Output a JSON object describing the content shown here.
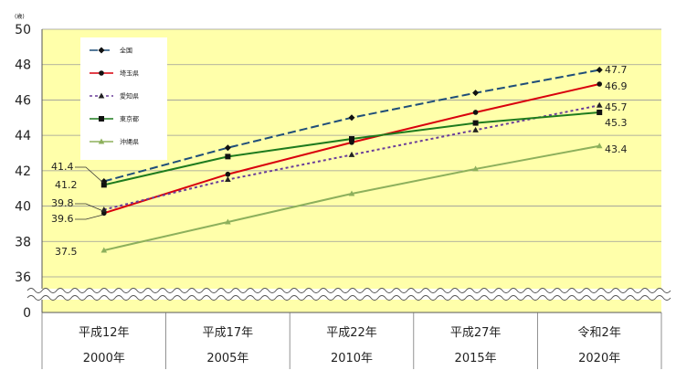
{
  "chart_data": {
    "type": "line",
    "unit_label": "(歳)",
    "categories": [
      "平成12年",
      "平成17年",
      "平成22年",
      "平成27年",
      "令和2年"
    ],
    "categories_line2": [
      "2000年",
      "2005年",
      "2010年",
      "2015年",
      "2020年"
    ],
    "y_ticks": [
      "50",
      "48",
      "46",
      "44",
      "42",
      "40",
      "38",
      "36",
      "0"
    ],
    "ylim": [
      36,
      50
    ],
    "axis_break": true,
    "grid": true,
    "plot_background": "#FFFFAA",
    "legend_position": "top-left",
    "series": [
      {
        "name": "全国",
        "values": [
          41.4,
          43.3,
          45.0,
          46.4,
          47.7
        ],
        "labels": [
          "41.4",
          "47.7"
        ],
        "color": "#1F4E79",
        "dash": "dashed",
        "marker": "diamond"
      },
      {
        "name": "埼玉県",
        "values": [
          39.6,
          41.8,
          43.6,
          45.3,
          46.9
        ],
        "labels": [
          "39.6",
          "46.9"
        ],
        "color": "#D9000D",
        "dash": "solid",
        "marker": "circle"
      },
      {
        "name": "愛知県",
        "values": [
          39.8,
          41.5,
          42.9,
          44.3,
          45.7
        ],
        "labels": [
          "39.8",
          "45.7"
        ],
        "color": "#6A3D9A",
        "dash": "dotted",
        "marker": "triangle"
      },
      {
        "name": "東京都",
        "values": [
          41.2,
          42.8,
          43.8,
          44.7,
          45.3
        ],
        "labels": [
          "41.2",
          "45.3"
        ],
        "color": "#1E7B1E",
        "dash": "solid",
        "marker": "square"
      },
      {
        "name": "沖縄県",
        "values": [
          37.5,
          39.1,
          40.7,
          42.1,
          43.4
        ],
        "labels": [
          "37.5",
          "43.4"
        ],
        "color": "#8DB05C",
        "dash": "solid",
        "marker": "triangle"
      }
    ]
  }
}
